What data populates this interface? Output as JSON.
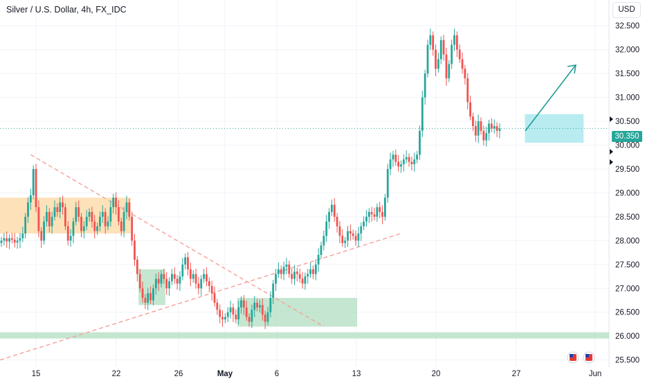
{
  "header": {
    "title": "Silver / U.S. Dollar, 4h, FX_IDC",
    "currency": "USD"
  },
  "price_tag": "30.350",
  "colors": {
    "up": "#26a69a",
    "down": "#ef5350",
    "grid": "#f0f3fa",
    "support_zone": "#b7e0c4",
    "resistance_zone": "#fcd9a8",
    "highlight_zone": "#a6e7ee",
    "trendline": "#f7a49e",
    "arrow": "#1e9c93"
  },
  "chart_data": {
    "type": "candlestick",
    "ylim": [
      25.35,
      32.75
    ],
    "y_ticks": [
      "32.500",
      "32.000",
      "31.500",
      "31.000",
      "30.500",
      "30.000",
      "29.500",
      "29.000",
      "28.500",
      "28.000",
      "27.500",
      "27.000",
      "26.500",
      "26.000",
      "25.500"
    ],
    "x_ticks": [
      "15",
      "22",
      "26",
      "May",
      "6",
      "13",
      "20",
      "27",
      "Jun"
    ],
    "current_price": 30.35,
    "series_close": [
      28.0,
      28.05,
      27.98,
      28.05,
      28.02,
      27.96,
      28.0,
      28.05,
      28.15,
      28.5,
      28.8,
      28.95,
      29.5,
      28.7,
      28.2,
      28.0,
      28.4,
      28.6,
      28.3,
      28.5,
      28.7,
      28.6,
      28.8,
      28.7,
      28.3,
      28.0,
      28.1,
      28.4,
      28.7,
      28.5,
      28.2,
      28.3,
      28.5,
      28.6,
      28.4,
      28.2,
      28.3,
      28.5,
      28.6,
      28.3,
      28.4,
      28.7,
      28.9,
      28.7,
      28.4,
      28.2,
      28.6,
      28.8,
      28.5,
      28.0,
      27.6,
      27.3,
      27.0,
      26.8,
      26.7,
      26.9,
      26.75,
      27.0,
      27.2,
      27.1,
      27.3,
      27.2,
      27.0,
      27.15,
      27.3,
      27.2,
      27.1,
      27.25,
      27.5,
      27.65,
      27.4,
      27.2,
      27.3,
      27.1,
      27.0,
      27.2,
      27.3,
      27.15,
      27.05,
      26.9,
      26.7,
      26.55,
      26.4,
      26.35,
      26.4,
      26.5,
      26.6,
      26.45,
      26.35,
      26.6,
      26.75,
      26.6,
      26.4,
      26.3,
      26.55,
      26.7,
      26.6,
      26.65,
      26.45,
      26.3,
      26.5,
      26.8,
      27.1,
      27.3,
      27.4,
      27.3,
      27.45,
      27.5,
      27.3,
      27.2,
      27.35,
      27.3,
      27.2,
      27.1,
      27.25,
      27.3,
      27.4,
      27.3,
      27.5,
      27.7,
      27.9,
      28.1,
      28.4,
      28.6,
      28.75,
      28.5,
      28.3,
      28.1,
      27.95,
      28.0,
      28.2,
      28.15,
      28.1,
      28.0,
      28.15,
      28.3,
      28.4,
      28.5,
      28.6,
      28.55,
      28.5,
      28.7,
      28.6,
      28.5,
      28.9,
      29.5,
      29.7,
      29.8,
      29.65,
      29.55,
      29.6,
      29.7,
      29.75,
      29.65,
      29.6,
      29.7,
      29.8,
      30.3,
      31.0,
      31.5,
      32.1,
      32.3,
      32.0,
      31.6,
      31.8,
      32.2,
      31.9,
      31.4,
      31.7,
      32.1,
      32.3,
      32.0,
      31.8,
      31.6,
      31.4,
      30.9,
      30.6,
      30.4,
      30.2,
      30.5,
      30.3,
      30.1,
      30.25,
      30.45,
      30.35,
      30.4,
      30.3,
      30.35
    ],
    "zones": [
      {
        "name": "resistance-zone",
        "from": 28.15,
        "to": 28.9,
        "x_from": 0,
        "x_to": 48
      },
      {
        "name": "support-zone-1",
        "from": 26.65,
        "to": 27.4,
        "x_from": 52,
        "x_to": 61
      },
      {
        "name": "support-zone-2",
        "from": 26.2,
        "to": 26.8,
        "x_from": 89,
        "x_to": 133
      },
      {
        "name": "support-line",
        "from": 25.95,
        "to": 26.08,
        "x_from": 0,
        "x_to": 250
      },
      {
        "name": "highlight-zone",
        "from": 30.05,
        "to": 30.65,
        "x_from": 197,
        "x_to": 218
      }
    ]
  }
}
